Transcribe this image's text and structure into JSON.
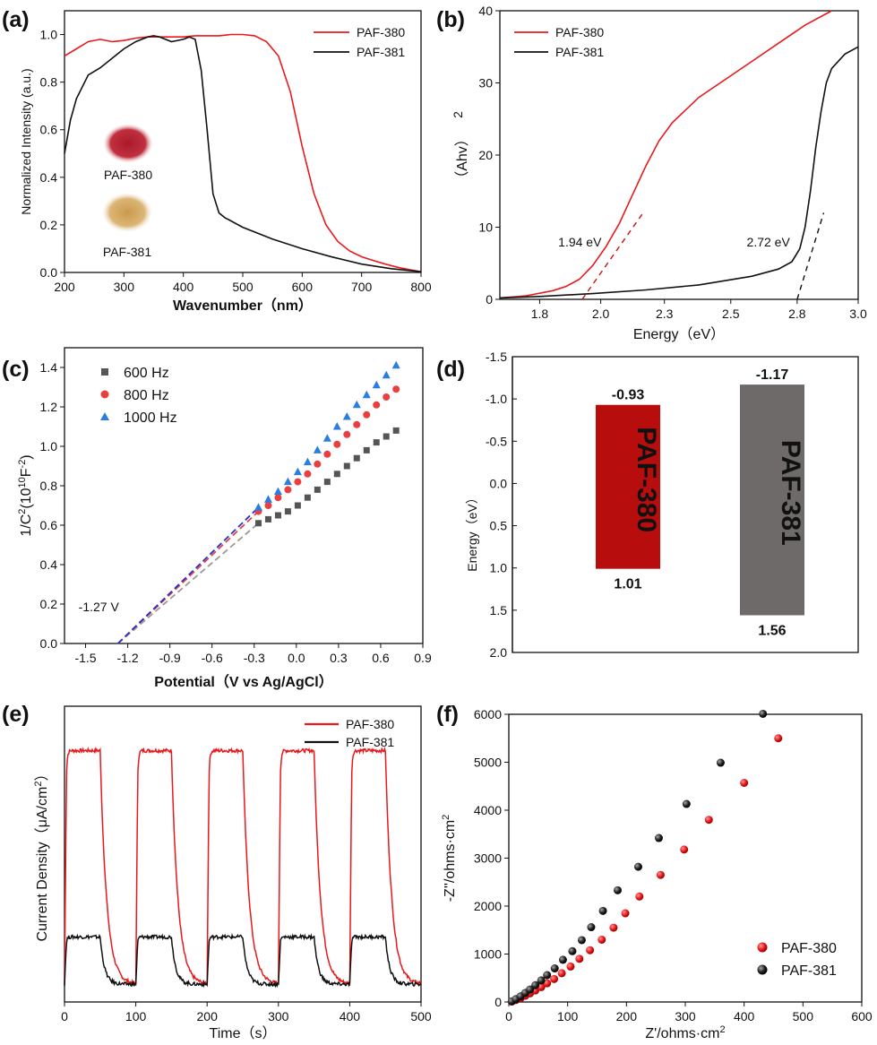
{
  "chart_data": [
    {
      "panel": "(a)",
      "type": "line",
      "xlabel": "Wavenumber（nm）",
      "ylabel": "Normalized Intensity (a.u.)",
      "xlim": [
        200,
        800
      ],
      "ylim": [
        0,
        1.1
      ],
      "xticks": [
        "200",
        "300",
        "400",
        "500",
        "600",
        "700",
        "800"
      ],
      "yticks": [
        "0.0",
        "0.2",
        "0.4",
        "0.6",
        "0.8",
        "1.0"
      ],
      "legend_position": "top-right",
      "inset_labels": [
        "PAF-380",
        "PAF-381"
      ],
      "series": [
        {
          "name": "PAF-380",
          "color": "#e8191c",
          "x": [
            200,
            220,
            240,
            260,
            280,
            300,
            320,
            340,
            360,
            380,
            400,
            420,
            440,
            460,
            480,
            500,
            520,
            540,
            560,
            580,
            600,
            620,
            640,
            660,
            680,
            700,
            720,
            740,
            760,
            780,
            800
          ],
          "y": [
            0.91,
            0.94,
            0.97,
            0.98,
            0.97,
            0.975,
            0.985,
            0.99,
            0.99,
            0.99,
            0.99,
            0.995,
            0.995,
            0.995,
            1.0,
            1.0,
            0.995,
            0.97,
            0.91,
            0.76,
            0.53,
            0.33,
            0.2,
            0.13,
            0.09,
            0.066,
            0.05,
            0.035,
            0.022,
            0.012,
            0.003
          ]
        },
        {
          "name": "PAF-381",
          "color": "#111111",
          "x": [
            200,
            210,
            220,
            240,
            260,
            280,
            300,
            320,
            340,
            350,
            360,
            380,
            400,
            410,
            420,
            430,
            440,
            450,
            460,
            470,
            500,
            550,
            600,
            650,
            700,
            750,
            800
          ],
          "y": [
            0.5,
            0.64,
            0.73,
            0.83,
            0.86,
            0.9,
            0.94,
            0.97,
            0.99,
            0.995,
            0.99,
            0.97,
            0.98,
            0.99,
            0.98,
            0.85,
            0.6,
            0.33,
            0.25,
            0.23,
            0.19,
            0.14,
            0.1,
            0.065,
            0.035,
            0.016,
            0.003
          ]
        }
      ]
    },
    {
      "panel": "(b)",
      "type": "line",
      "xlabel": "Energy（eV）",
      "ylabel": "（Ahv）",
      "ylabel_superscript": "2",
      "xlim": [
        1.65,
        3.0
      ],
      "ylim": [
        0,
        40
      ],
      "xticks": [
        "1.8",
        "2.0",
        "2.3",
        "2.5",
        "2.8",
        "3.0"
      ],
      "xtick_values": [
        1.8,
        2.03,
        2.27,
        2.52,
        2.77,
        3.0
      ],
      "yticks": [
        "0",
        "10",
        "20",
        "30",
        "40"
      ],
      "legend_position": "top-left",
      "annotations": [
        {
          "text": "1.94 eV",
          "color": "#cc1111",
          "x": 1.87,
          "y": 7.3
        },
        {
          "text": "2.72 eV",
          "color": "#111111",
          "x": 2.58,
          "y": 7.3
        }
      ],
      "tangents": [
        {
          "color": "#cc1111",
          "x": [
            1.96,
            2.19
          ],
          "y": [
            0,
            12
          ]
        },
        {
          "color": "#111111",
          "x": [
            2.77,
            2.87
          ],
          "y": [
            0,
            12
          ]
        }
      ],
      "series": [
        {
          "name": "PAF-380",
          "color": "#e8191c",
          "x": [
            1.65,
            1.75,
            1.85,
            1.9,
            1.95,
            2.0,
            2.05,
            2.1,
            2.15,
            2.2,
            2.25,
            2.3,
            2.4,
            2.5,
            2.6,
            2.7,
            2.8,
            2.9
          ],
          "y": [
            0.2,
            0.5,
            1.2,
            1.8,
            2.8,
            4.7,
            7.3,
            10.5,
            14.5,
            18.5,
            22,
            24.5,
            28,
            30.5,
            33,
            35.5,
            38,
            40
          ]
        },
        {
          "name": "PAF-381",
          "color": "#111111",
          "x": [
            1.65,
            1.8,
            2.0,
            2.2,
            2.4,
            2.5,
            2.6,
            2.7,
            2.75,
            2.78,
            2.8,
            2.82,
            2.84,
            2.86,
            2.88,
            2.9,
            2.95,
            3.0
          ],
          "y": [
            0.2,
            0.4,
            0.8,
            1.3,
            2.0,
            2.6,
            3.2,
            4.2,
            5.2,
            7,
            10,
            15,
            21,
            26,
            30,
            32,
            34,
            35
          ]
        }
      ]
    },
    {
      "panel": "(c)",
      "type": "scatter",
      "xlabel": "Potential（V vs Ag/AgCl）",
      "ylabel_parts": [
        "1/C",
        "2",
        "(10",
        "10",
        "F",
        "-2",
        ")"
      ],
      "xlim": [
        -1.65,
        0.9
      ],
      "ylim": [
        0,
        1.5
      ],
      "xticks": [
        "-1.5",
        "-1.2",
        "-0.9",
        "-0.6",
        "-0.3",
        "0.0",
        "0.3",
        "0.6",
        "0.9"
      ],
      "yticks": [
        "0.0",
        "0.2",
        "0.4",
        "0.6",
        "0.8",
        "1.0",
        "1.2",
        "1.4"
      ],
      "annotation": {
        "text": "-1.27 V",
        "x": -1.55,
        "y": 0.2
      },
      "legend_position": "top-left",
      "series": [
        {
          "name": "600 Hz",
          "color": "#555555",
          "marker": "square",
          "x": [
            -0.27,
            -0.2,
            -0.13,
            -0.06,
            0.01,
            0.08,
            0.15,
            0.22,
            0.29,
            0.36,
            0.43,
            0.5,
            0.57,
            0.64,
            0.71
          ],
          "y": [
            0.61,
            0.63,
            0.65,
            0.67,
            0.7,
            0.74,
            0.78,
            0.82,
            0.86,
            0.9,
            0.94,
            0.98,
            1.02,
            1.05,
            1.08
          ],
          "fit": {
            "x": [
              -1.27,
              -0.27
            ],
            "y": [
              0,
              0.61
            ],
            "color": "#999999"
          }
        },
        {
          "name": "800 Hz",
          "color": "#e84040",
          "marker": "circle",
          "x": [
            -0.27,
            -0.2,
            -0.13,
            -0.06,
            0.01,
            0.08,
            0.15,
            0.22,
            0.29,
            0.36,
            0.43,
            0.5,
            0.57,
            0.64,
            0.71
          ],
          "y": [
            0.67,
            0.7,
            0.74,
            0.78,
            0.82,
            0.86,
            0.91,
            0.96,
            1.01,
            1.06,
            1.11,
            1.16,
            1.21,
            1.25,
            1.29
          ],
          "fit": {
            "x": [
              -1.27,
              -0.27
            ],
            "y": [
              0,
              0.67
            ],
            "color": "#e84040"
          }
        },
        {
          "name": "1000 Hz",
          "color": "#2a7de1",
          "marker": "triangle",
          "x": [
            -0.27,
            -0.2,
            -0.13,
            -0.06,
            0.01,
            0.08,
            0.15,
            0.22,
            0.29,
            0.36,
            0.43,
            0.5,
            0.57,
            0.64,
            0.71
          ],
          "y": [
            0.69,
            0.73,
            0.77,
            0.82,
            0.87,
            0.92,
            0.98,
            1.04,
            1.1,
            1.15,
            1.21,
            1.26,
            1.31,
            1.36,
            1.41
          ],
          "fit": {
            "x": [
              -1.27,
              -0.27
            ],
            "y": [
              0,
              0.69
            ],
            "color": "#2233cc"
          }
        }
      ]
    },
    {
      "panel": "(d)",
      "type": "bar",
      "ylabel": "Energy（eV）",
      "ylim": [
        -1.5,
        2.0
      ],
      "inverted": true,
      "yticks": [
        "-1.5",
        "-1.0",
        "-0.5",
        "0.0",
        "0.5",
        "1.0",
        "1.5",
        "2.0"
      ],
      "bars": [
        {
          "name": "PAF-380",
          "top": -0.93,
          "bottom": 1.01,
          "top_label": "-0.93",
          "bottom_label": "1.01",
          "color": "#b80d0d"
        },
        {
          "name": "PAF-381",
          "top": -1.17,
          "bottom": 1.56,
          "top_label": "-1.17",
          "bottom_label": "1.56",
          "color": "#6e6a69"
        }
      ]
    },
    {
      "panel": "(e)",
      "type": "line",
      "xlabel": "Time（s）",
      "ylabel": "Current Density（μA/cm",
      "ylabel_superscript": "2",
      "ylabel_close": "）",
      "xlim": [
        0,
        500
      ],
      "xticks": [
        "0",
        "100",
        "200",
        "300",
        "400",
        "500"
      ],
      "legend_position": "top-right",
      "on_off_period_s": 100,
      "light_on_s": 50,
      "series": [
        {
          "name": "PAF-380",
          "color": "#e8191c",
          "on_level": 0.85,
          "off_level": 0.06
        },
        {
          "name": "PAF-381",
          "color": "#111111",
          "on_level": 0.22,
          "off_level": 0.06
        }
      ]
    },
    {
      "panel": "(f)",
      "type": "scatter",
      "xlabel": "Z'/ohms·cm",
      "xlabel_superscript": "2",
      "ylabel": "-Z''/ohms·cm",
      "ylabel_superscript": "2",
      "xlim": [
        0,
        600
      ],
      "ylim": [
        0,
        6000
      ],
      "xticks": [
        "0",
        "100",
        "200",
        "300",
        "400",
        "500",
        "600"
      ],
      "yticks": [
        "0",
        "1000",
        "2000",
        "3000",
        "4000",
        "5000",
        "6000"
      ],
      "legend_position": "bottom-right",
      "series": [
        {
          "name": "PAF-380",
          "color": "#e8191c",
          "x": [
            5,
            12,
            20,
            28,
            36,
            45,
            55,
            65,
            77,
            90,
            105,
            120,
            138,
            158,
            178,
            198,
            222,
            258,
            298,
            340,
            400,
            458
          ],
          "y": [
            10,
            40,
            80,
            130,
            180,
            240,
            310,
            390,
            480,
            600,
            740,
            900,
            1080,
            1300,
            1550,
            1850,
            2200,
            2650,
            3180,
            3800,
            4570,
            5500
          ]
        },
        {
          "name": "PAF-381",
          "color": "#111111",
          "x": [
            5,
            12,
            20,
            28,
            36,
            45,
            55,
            65,
            78,
            92,
            108,
            124,
            140,
            160,
            185,
            220,
            255,
            302,
            360,
            432
          ],
          "y": [
            15,
            60,
            120,
            190,
            260,
            350,
            450,
            560,
            700,
            880,
            1060,
            1290,
            1560,
            1900,
            2330,
            2820,
            3420,
            4130,
            4990,
            6010
          ]
        }
      ]
    }
  ],
  "panel_labels": [
    "(a)",
    "(b)",
    "(c)",
    "(d)",
    "(e)",
    "(f)"
  ]
}
